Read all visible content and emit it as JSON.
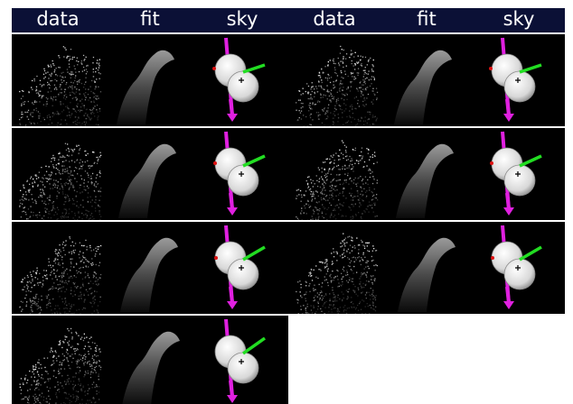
{
  "header": {
    "labels": [
      "data",
      "fit",
      "sky",
      "data",
      "fit",
      "sky"
    ]
  }
}
